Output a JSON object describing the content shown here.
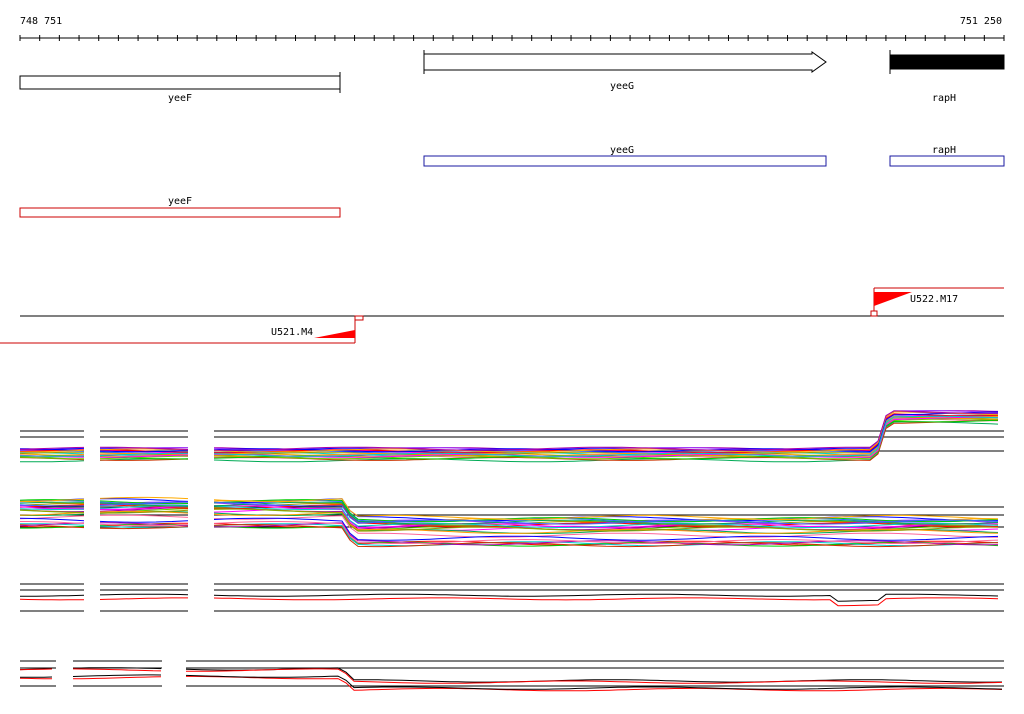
{
  "ruler": {
    "start_label": "748 751",
    "end_label": "751 250"
  },
  "genes": {
    "yeeF_annotation": "yeeF",
    "yeeG_annotation": "yeeG",
    "rapH_annotation": "rapH",
    "yeeG_blue": "yeeG",
    "rapH_blue": "rapH",
    "yeeF_red": "yeeF"
  },
  "transcripts": {
    "right_label": "U522.M17",
    "left_label": "U521.M4"
  },
  "colors": {
    "gene_fill_black": "#000000",
    "forward_feature": "#1a1aa0",
    "reverse_feature": "#cc0000",
    "signal_series": [
      "#ff0000",
      "#00cc00",
      "#0000ff",
      "#ff00ff",
      "#00cccc",
      "#ffaa00",
      "#aa00aa",
      "#00aa55",
      "#ff6699",
      "#999900",
      "#3366ff",
      "#cc3300",
      "#66cc00",
      "#9933ff",
      "#ff9900"
    ]
  }
}
